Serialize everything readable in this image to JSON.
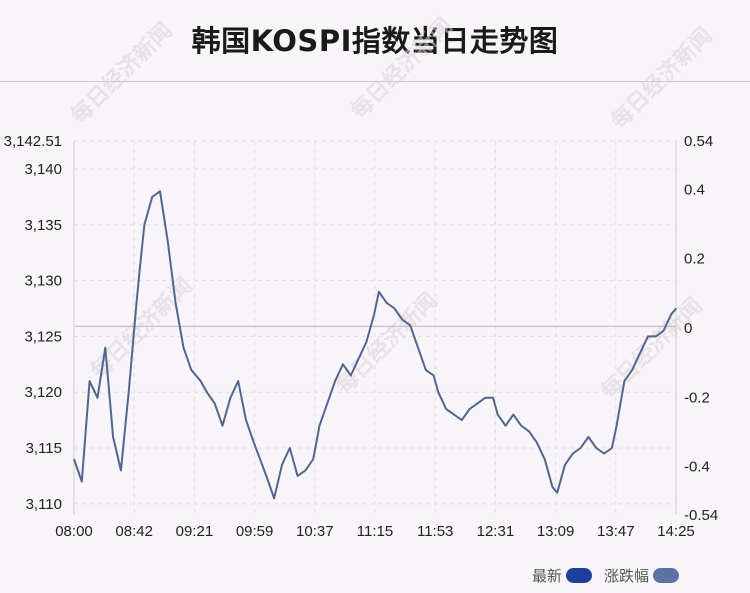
{
  "title": "韩国KOSPI指数当日走势图",
  "watermark": "每日经济新闻",
  "legend": [
    {
      "label": "最新",
      "color": "#1f3f9c"
    },
    {
      "label": "涨跌幅",
      "color": "#5b72a3"
    }
  ],
  "colors": {
    "line": "#53658f",
    "baseline": "#c4c2c6",
    "grid": "#e2dee2",
    "axis_text": "#222222"
  },
  "chart_data": {
    "type": "line",
    "title": "韩国KOSPI指数当日走势图",
    "x_ticks": [
      "08:00",
      "08:42",
      "09:21",
      "09:59",
      "10:37",
      "11:15",
      "11:53",
      "12:31",
      "13:09",
      "13:47",
      "14:25"
    ],
    "y_left_ticks": [
      "3,142.51",
      "3,140",
      "3,135",
      "3,130",
      "3,125",
      "3,120",
      "3,115",
      "3,110"
    ],
    "y_right_ticks": [
      "0.54",
      "0.4",
      "0.2",
      "0",
      "-0.2",
      "-0.4",
      "-0.54"
    ],
    "ylim_left": [
      3109.0,
      3142.51
    ],
    "ylim_right": [
      -0.54,
      0.54
    ],
    "prev_close": 3125.9,
    "grid": true,
    "series": [
      {
        "name": "最新",
        "x": [
          "08:00",
          "08:05",
          "08:10",
          "08:15",
          "08:20",
          "08:25",
          "08:30",
          "08:35",
          "08:40",
          "08:42",
          "08:45",
          "08:50",
          "08:55",
          "09:00",
          "09:05",
          "09:10",
          "09:15",
          "09:21",
          "09:25",
          "09:30",
          "09:35",
          "09:40",
          "09:45",
          "09:50",
          "09:55",
          "09:59",
          "10:03",
          "10:08",
          "10:13",
          "10:18",
          "10:23",
          "10:28",
          "10:33",
          "10:37",
          "10:42",
          "10:47",
          "10:52",
          "10:57",
          "11:02",
          "11:07",
          "11:12",
          "11:15",
          "11:20",
          "11:25",
          "11:30",
          "11:35",
          "11:40",
          "11:45",
          "11:50",
          "11:53",
          "11:58",
          "12:03",
          "12:08",
          "12:13",
          "12:18",
          "12:23",
          "12:28",
          "12:31",
          "12:36",
          "12:41",
          "12:46",
          "12:51",
          "12:56",
          "13:01",
          "13:06",
          "13:09",
          "13:14",
          "13:19",
          "13:24",
          "13:29",
          "13:34",
          "13:39",
          "13:44",
          "13:47",
          "13:52",
          "13:57",
          "14:02",
          "14:07",
          "14:12",
          "14:17",
          "14:22",
          "14:25"
        ],
        "values": [
          3114.0,
          3112.0,
          3121.0,
          3119.5,
          3124.0,
          3116.0,
          3113.0,
          3120.0,
          3128.0,
          3131.0,
          3135.0,
          3137.5,
          3138.0,
          3133.5,
          3128.0,
          3124.0,
          3122.0,
          3121.0,
          3120.0,
          3119.0,
          3117.0,
          3119.5,
          3121.0,
          3117.5,
          3115.5,
          3114.0,
          3112.5,
          3110.5,
          3113.5,
          3115.0,
          3112.5,
          3113.0,
          3114.0,
          3117.0,
          3119.0,
          3121.0,
          3122.5,
          3121.5,
          3123.0,
          3124.5,
          3127.0,
          3129.0,
          3128.0,
          3127.5,
          3126.5,
          3126.0,
          3124.0,
          3122.0,
          3121.5,
          3120.0,
          3118.5,
          3118.0,
          3117.5,
          3118.5,
          3119.0,
          3119.5,
          3119.5,
          3118.0,
          3117.0,
          3118.0,
          3117.0,
          3116.5,
          3115.5,
          3114.0,
          3111.5,
          3111.0,
          3113.5,
          3114.5,
          3115.0,
          3116.0,
          3115.0,
          3114.5,
          3115.0,
          3117.0,
          3121.0,
          3122.0,
          3123.5,
          3125.0,
          3125.0,
          3125.5,
          3127.0,
          3127.5
        ]
      }
    ]
  }
}
